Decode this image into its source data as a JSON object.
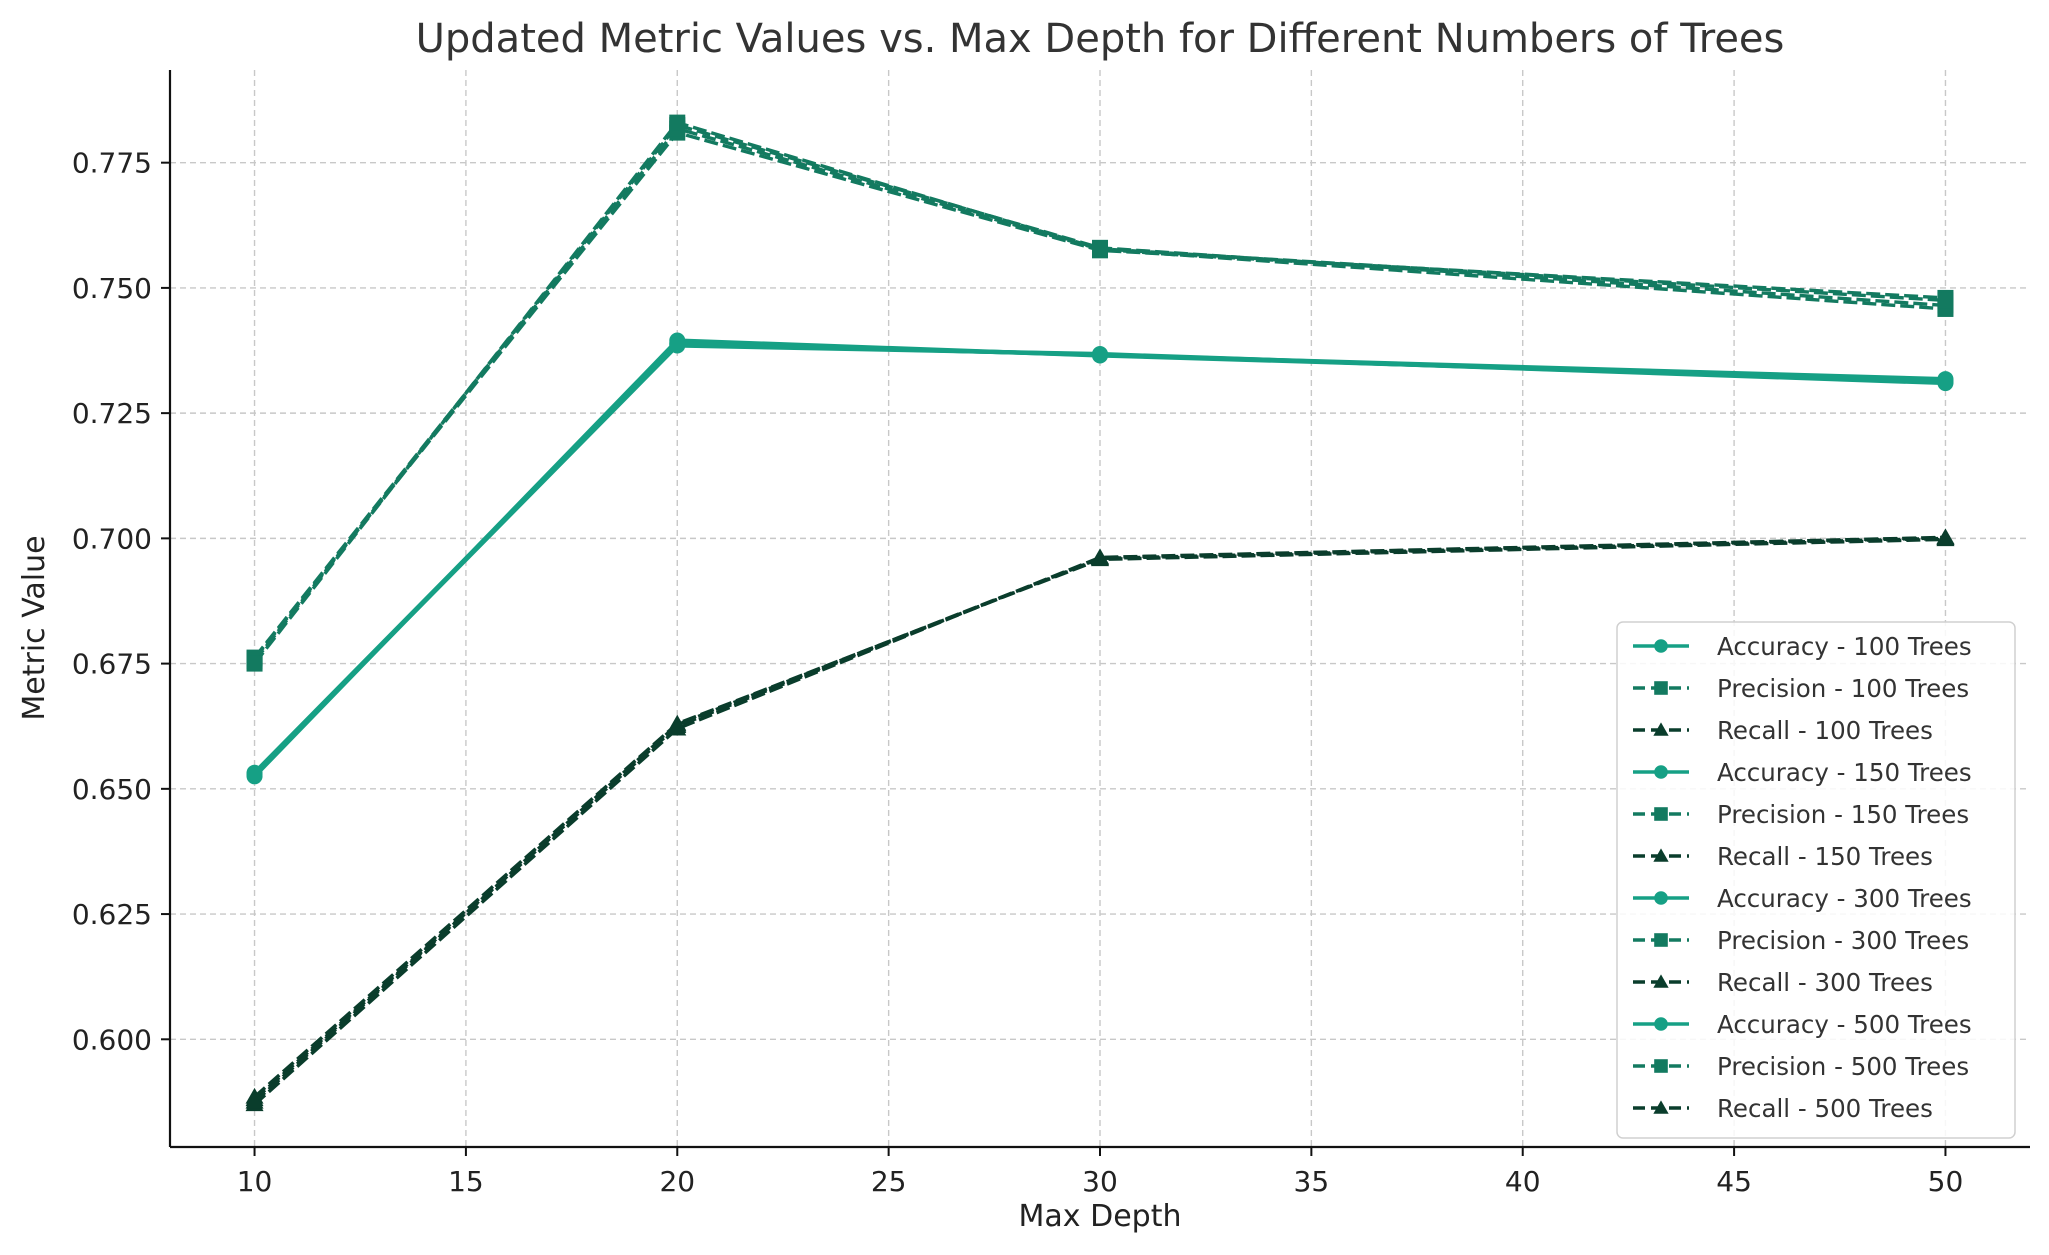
{
  "chart_data": {
    "type": "line",
    "title": "Updated Metric Values vs. Max Depth for Different Numbers of Trees",
    "xlabel": "Max Depth",
    "ylabel": "Metric Value",
    "x": [
      10,
      20,
      30,
      50
    ],
    "xlim": [
      8,
      52
    ],
    "ylim": [
      0.5785,
      0.7935
    ],
    "xticks": [
      10,
      15,
      20,
      25,
      30,
      35,
      40,
      45,
      50
    ],
    "yticks": [
      0.6,
      0.625,
      0.65,
      0.675,
      0.7,
      0.725,
      0.75,
      0.775
    ],
    "grid": true,
    "legend_position": "lower-right",
    "series": [
      {
        "name": "Accuracy - 100 Trees",
        "metric": "accuracy",
        "values": [
          0.6525,
          0.7395,
          0.7365,
          0.7315
        ],
        "color": "#16a085",
        "line": "solid",
        "marker": "circle"
      },
      {
        "name": "Precision - 100 Trees",
        "metric": "precision",
        "values": [
          0.676,
          0.781,
          0.7575,
          0.748
        ],
        "color": "#137a60",
        "line": "dashed",
        "marker": "square"
      },
      {
        "name": "Recall - 100 Trees",
        "metric": "recall",
        "values": [
          0.588,
          0.6625,
          0.696,
          0.7
        ],
        "color": "#0a3d2c",
        "line": "dashed",
        "marker": "triangle"
      },
      {
        "name": "Accuracy - 150 Trees",
        "metric": "accuracy",
        "values": [
          0.653,
          0.7385,
          0.7368,
          0.731
        ],
        "color": "#16a085",
        "line": "solid",
        "marker": "circle"
      },
      {
        "name": "Precision - 150 Trees",
        "metric": "precision",
        "values": [
          0.6755,
          0.7825,
          0.758,
          0.7465
        ],
        "color": "#137a60",
        "line": "dashed",
        "marker": "square"
      },
      {
        "name": "Recall - 150 Trees",
        "metric": "recall",
        "values": [
          0.587,
          0.662,
          0.6962,
          0.7002
        ],
        "color": "#0a3d2c",
        "line": "dashed",
        "marker": "triangle"
      },
      {
        "name": "Accuracy - 300 Trees",
        "metric": "accuracy",
        "values": [
          0.6528,
          0.739,
          0.7366,
          0.7318
        ],
        "color": "#16a085",
        "line": "solid",
        "marker": "circle"
      },
      {
        "name": "Precision - 300 Trees",
        "metric": "precision",
        "values": [
          0.6762,
          0.7818,
          0.7577,
          0.7458
        ],
        "color": "#137a60",
        "line": "dashed",
        "marker": "square"
      },
      {
        "name": "Recall - 300 Trees",
        "metric": "recall",
        "values": [
          0.5885,
          0.663,
          0.6958,
          0.6998
        ],
        "color": "#0a3d2c",
        "line": "dashed",
        "marker": "triangle"
      },
      {
        "name": "Accuracy - 500 Trees",
        "metric": "accuracy",
        "values": [
          0.6532,
          0.7388,
          0.7367,
          0.7312
        ],
        "color": "#16a085",
        "line": "solid",
        "marker": "circle"
      },
      {
        "name": "Precision - 500 Trees",
        "metric": "precision",
        "values": [
          0.675,
          0.783,
          0.7578,
          0.7475
        ],
        "color": "#137a60",
        "line": "dashed",
        "marker": "square"
      },
      {
        "name": "Recall - 500 Trees",
        "metric": "recall",
        "values": [
          0.5875,
          0.6628,
          0.696,
          0.7001
        ],
        "color": "#0a3d2c",
        "line": "dashed",
        "marker": "triangle"
      }
    ]
  }
}
